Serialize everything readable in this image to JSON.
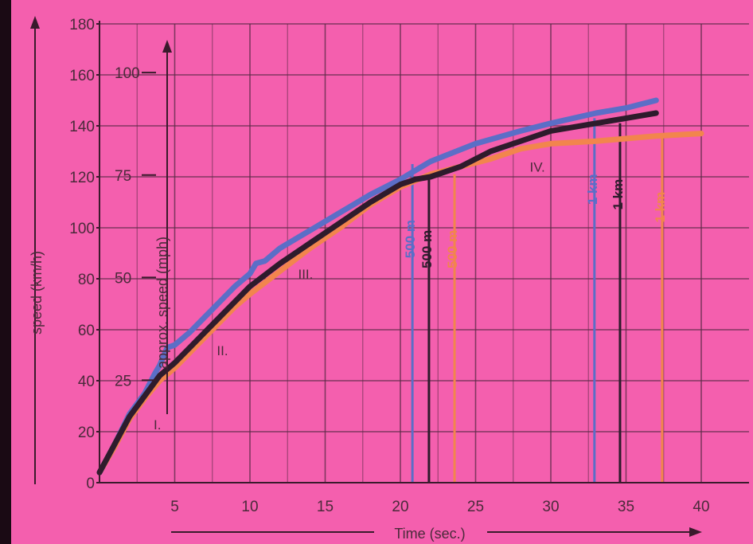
{
  "chart_data": {
    "type": "line",
    "xlabel": "Time (sec.)",
    "ylabel": "speed (km/h)",
    "ylabel_secondary": "approx. speed (mph)",
    "xlim": [
      0,
      40
    ],
    "ylim": [
      0,
      180
    ],
    "x_ticks": [
      5,
      10,
      15,
      20,
      25,
      30,
      35,
      40
    ],
    "y_ticks": [
      0,
      20,
      40,
      60,
      80,
      100,
      120,
      140,
      160,
      180
    ],
    "mph_ticks": [
      {
        "label": "25",
        "kmh": 40.2
      },
      {
        "label": "50",
        "kmh": 80.5
      },
      {
        "label": "75",
        "kmh": 120.7
      },
      {
        "label": "100",
        "kmh": 160.9
      }
    ],
    "grid": true,
    "series": [
      {
        "color": "#5b6ec7",
        "points": [
          [
            0,
            4
          ],
          [
            1,
            15
          ],
          [
            2,
            27
          ],
          [
            3,
            35
          ],
          [
            3.7,
            43
          ],
          [
            4,
            46
          ],
          [
            4.5,
            53
          ],
          [
            5,
            54
          ],
          [
            6,
            59
          ],
          [
            7,
            65
          ],
          [
            8,
            71
          ],
          [
            9,
            77
          ],
          [
            10,
            82
          ],
          [
            10.4,
            86
          ],
          [
            11,
            87
          ],
          [
            12,
            92
          ],
          [
            14,
            99
          ],
          [
            16,
            106
          ],
          [
            18,
            113
          ],
          [
            20,
            119
          ],
          [
            22,
            126
          ],
          [
            25,
            133
          ],
          [
            28,
            138
          ],
          [
            30,
            141
          ],
          [
            33,
            145
          ],
          [
            35,
            147
          ],
          [
            37,
            150
          ]
        ]
      },
      {
        "color": "#2e1b2c",
        "points": [
          [
            0,
            4
          ],
          [
            1,
            15
          ],
          [
            2,
            26
          ],
          [
            3,
            34
          ],
          [
            4,
            42
          ],
          [
            5,
            47
          ],
          [
            6,
            53
          ],
          [
            7,
            59
          ],
          [
            8,
            65
          ],
          [
            9,
            71
          ],
          [
            10,
            77
          ],
          [
            12,
            86
          ],
          [
            14,
            94
          ],
          [
            16,
            102
          ],
          [
            18,
            110
          ],
          [
            20,
            117
          ],
          [
            21,
            119
          ],
          [
            22,
            120
          ],
          [
            24,
            124
          ],
          [
            26,
            130
          ],
          [
            28,
            134
          ],
          [
            30,
            138
          ],
          [
            33,
            141
          ],
          [
            35,
            143
          ],
          [
            37,
            145
          ]
        ]
      },
      {
        "color": "#f2854d",
        "points": [
          [
            0,
            4
          ],
          [
            1,
            14
          ],
          [
            2,
            25
          ],
          [
            3,
            33
          ],
          [
            4,
            40
          ],
          [
            5,
            45
          ],
          [
            6,
            51
          ],
          [
            7,
            57
          ],
          [
            8,
            63
          ],
          [
            9,
            69
          ],
          [
            10,
            74
          ],
          [
            12,
            83
          ],
          [
            14,
            92
          ],
          [
            16,
            100
          ],
          [
            18,
            109
          ],
          [
            20,
            116
          ],
          [
            22,
            121
          ],
          [
            24,
            124
          ],
          [
            26,
            127
          ],
          [
            28,
            131
          ],
          [
            30,
            133
          ],
          [
            33,
            134
          ],
          [
            35,
            135
          ],
          [
            37,
            136
          ],
          [
            40,
            137
          ]
        ]
      }
    ],
    "gear_labels": [
      {
        "text": "I.",
        "x": 3.6,
        "y": 21
      },
      {
        "text": "II.",
        "x": 7.8,
        "y": 50
      },
      {
        "text": "III.",
        "x": 13.2,
        "y": 80
      },
      {
        "text": "IV.",
        "x": 28.6,
        "y": 122
      }
    ],
    "distance_markers": [
      {
        "text": "500 m",
        "x": 20.8,
        "y_top": 125,
        "color": "#5b6ec7"
      },
      {
        "text": "500 m",
        "x": 21.9,
        "y_top": 121,
        "color": "#2e1b2c"
      },
      {
        "text": "500 m",
        "x": 23.6,
        "y_top": 121,
        "color": "#f2854d"
      },
      {
        "text": "1 km",
        "x": 32.9,
        "y_top": 143,
        "color": "#5b6ec7"
      },
      {
        "text": "1 km",
        "x": 34.6,
        "y_top": 141,
        "color": "#2e1b2c"
      },
      {
        "text": "1 km",
        "x": 37.4,
        "y_top": 136,
        "color": "#f2854d"
      }
    ]
  }
}
